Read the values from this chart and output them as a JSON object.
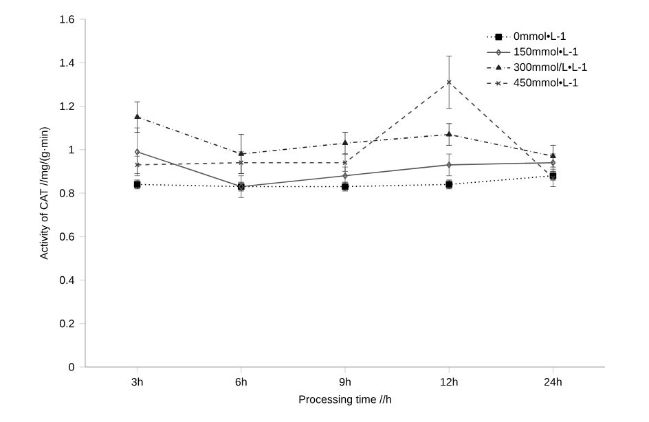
{
  "chart_data": {
    "type": "line",
    "xlabel": "Processing time //h",
    "ylabel": "Activity of CAT //mg/(g·min)",
    "categories": [
      "3h",
      "6h",
      "9h",
      "12h",
      "24h"
    ],
    "ylim": [
      0,
      1.6
    ],
    "yticks": [
      0,
      {
        "value": 0.2,
        "label": "0.2"
      },
      {
        "value": 0.4,
        "label": "0.4"
      },
      {
        "value": 0.6,
        "label": "0.6"
      },
      {
        "value": 0.8,
        "label": "0.8"
      },
      1,
      {
        "value": 1.2,
        "label": "1.2"
      },
      {
        "value": 1.4,
        "label": "1.4"
      },
      {
        "value": 1.6,
        "label": "1.6"
      }
    ],
    "legend": "top right",
    "grid": false,
    "series": [
      {
        "name": "0mmol•L-1",
        "color": "#000000",
        "marker": "square",
        "line_style": "dotted",
        "values": [
          0.84,
          0.83,
          0.83,
          0.84,
          0.88
        ],
        "errors": [
          0.02,
          0.02,
          0.02,
          0.02,
          0.02
        ]
      },
      {
        "name": "150mmol•L-1",
        "color": "#555555",
        "marker": "diamond",
        "line_style": "solid",
        "values": [
          0.99,
          0.83,
          0.88,
          0.93,
          0.94
        ],
        "errors": [
          0.11,
          0.05,
          0.04,
          0.05,
          0.04
        ]
      },
      {
        "name": "300mmol/L•L-1",
        "color": "#222222",
        "marker": "triangle",
        "line_style": "dashdot",
        "values": [
          1.15,
          0.98,
          1.03,
          1.07,
          0.97
        ],
        "errors": [
          0.07,
          0.09,
          0.05,
          0.05,
          0.05
        ]
      },
      {
        "name": "450mmol•L-1",
        "color": "#444444",
        "marker": "cross",
        "line_style": "dashed",
        "values": [
          0.93,
          0.94,
          0.94,
          1.31,
          0.87
        ],
        "errors": [
          0.04,
          0.05,
          0.04,
          0.12,
          0.04
        ]
      }
    ]
  }
}
